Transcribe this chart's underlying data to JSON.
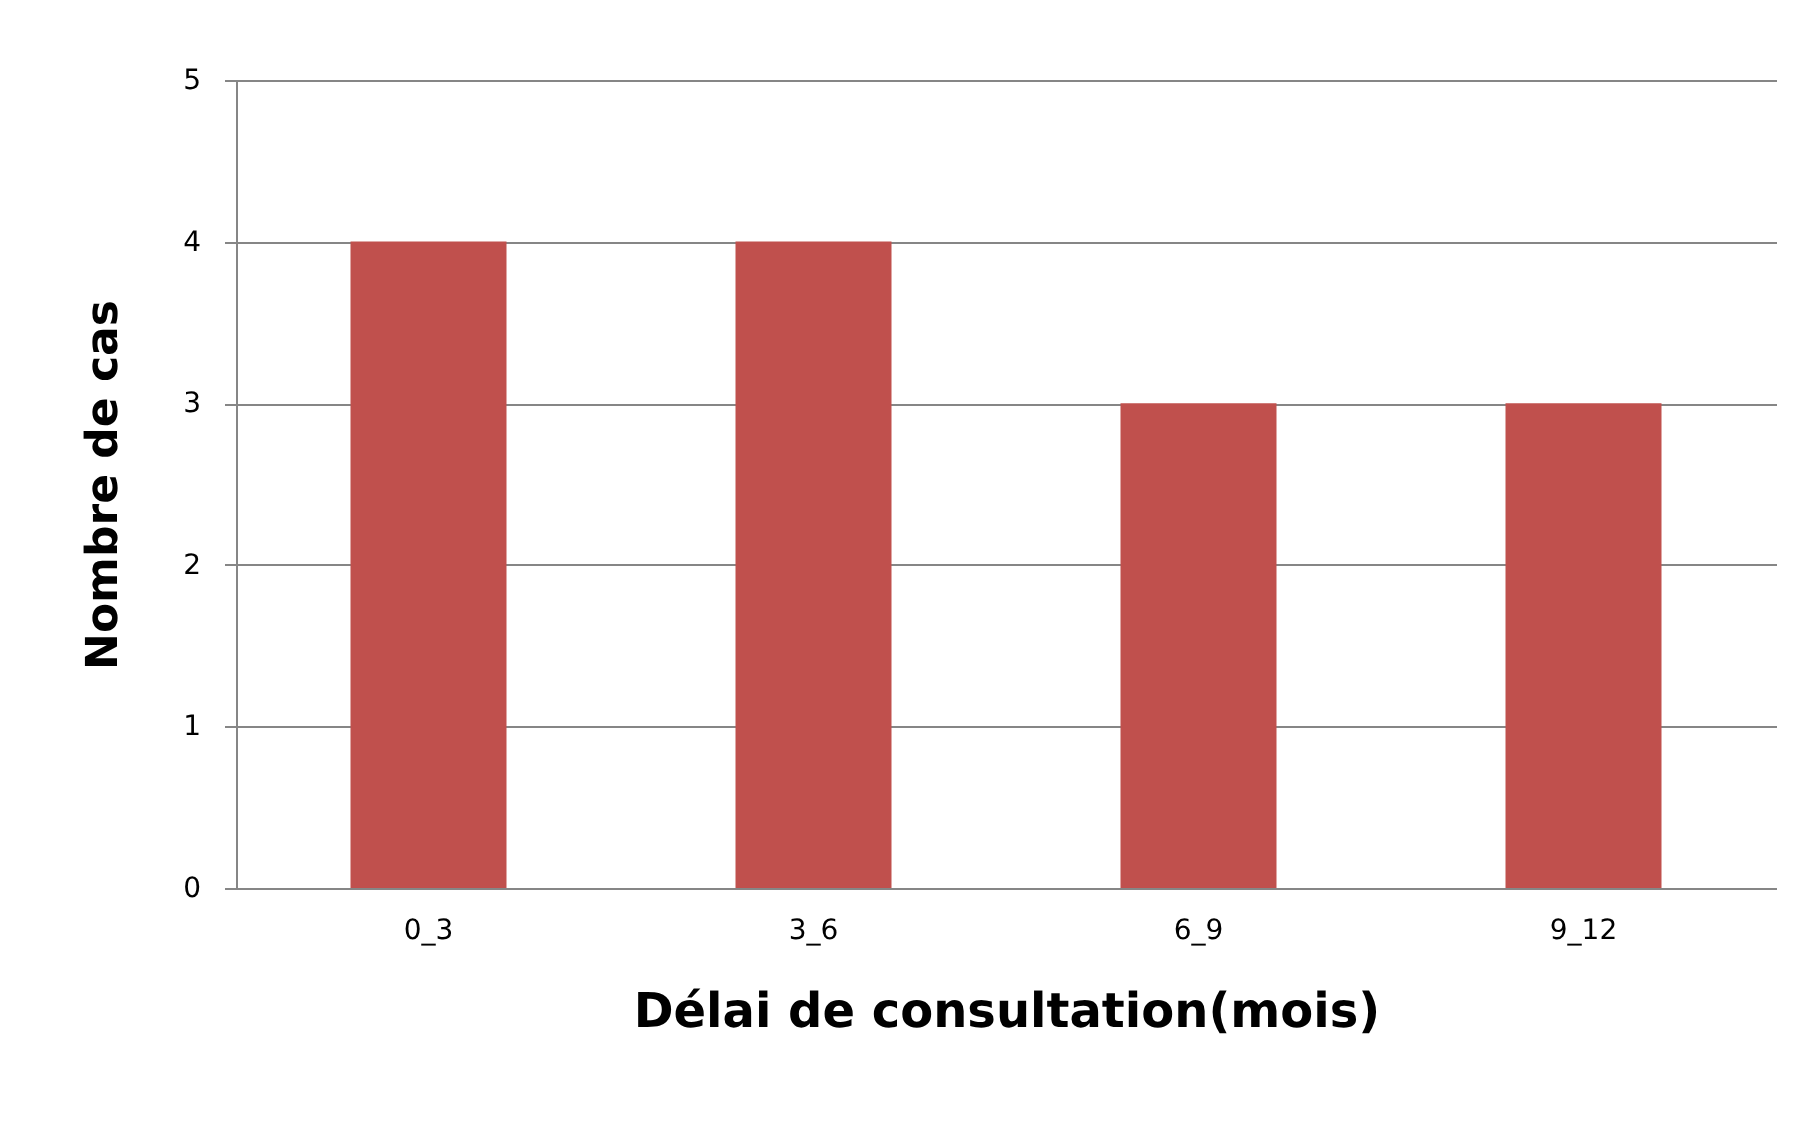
{
  "chart_data": {
    "type": "bar",
    "xlabel": "Délai de consultation(mois)",
    "ylabel": "Nombre de cas",
    "categories": [
      "0_3",
      "3_6",
      "6_9",
      "9_12"
    ],
    "values": [
      4,
      4,
      3,
      3
    ],
    "color": "#c0504d",
    "ylim": [
      0,
      5
    ],
    "yticks": [
      0,
      1,
      2,
      3,
      4,
      5
    ],
    "grid": "y"
  }
}
